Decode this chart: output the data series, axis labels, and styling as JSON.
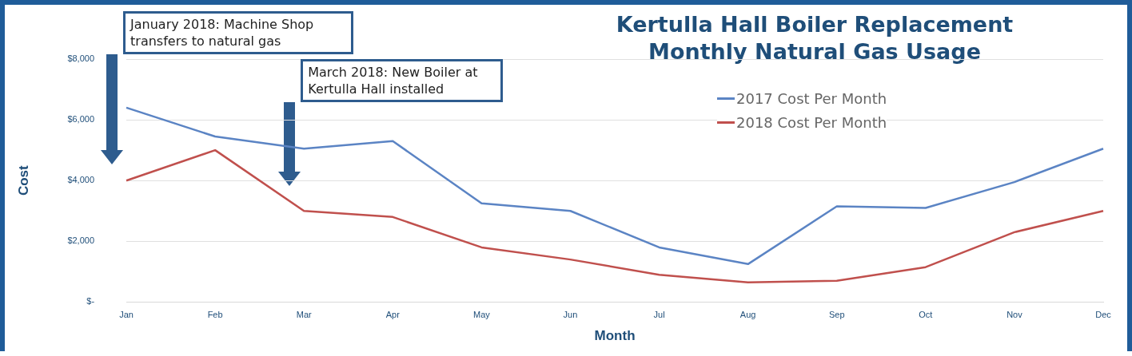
{
  "chart_data": {
    "type": "line",
    "title": "Kertulla Hall Boiler Replacement\nMonthly Natural Gas Usage",
    "xlabel": "Month",
    "ylabel": "Cost",
    "categories": [
      "Jan",
      "Feb",
      "Mar",
      "Apr",
      "May",
      "Jun",
      "Jul",
      "Aug",
      "Sep",
      "Oct",
      "Nov",
      "Dec"
    ],
    "series": [
      {
        "name": "2017 Cost Per Month",
        "color": "#5b84c4",
        "values": [
          6400,
          5450,
          5050,
          5300,
          3250,
          3000,
          1800,
          1250,
          3150,
          3100,
          3950,
          5050
        ]
      },
      {
        "name": "2018 Cost Per Month",
        "color": "#c0504d",
        "values": [
          4000,
          5000,
          3000,
          2800,
          1800,
          1400,
          900,
          650,
          700,
          1150,
          2300,
          3000
        ]
      }
    ],
    "ylim": [
      0,
      8000
    ],
    "yticks": [
      {
        "value": 0,
        "label": "$-"
      },
      {
        "value": 2000,
        "label": "$2,000"
      },
      {
        "value": 4000,
        "label": "$4,000"
      },
      {
        "value": 6000,
        "label": "$6,000"
      },
      {
        "value": 8000,
        "label": "$8,000"
      }
    ],
    "grid": "y",
    "legend": "top right",
    "marker": "none",
    "line_style": "solid",
    "annotations": [
      "January 2018: Machine Shop transfers to natural gas",
      "March 2018:  New Boiler at Kertulla Hall installed"
    ]
  }
}
